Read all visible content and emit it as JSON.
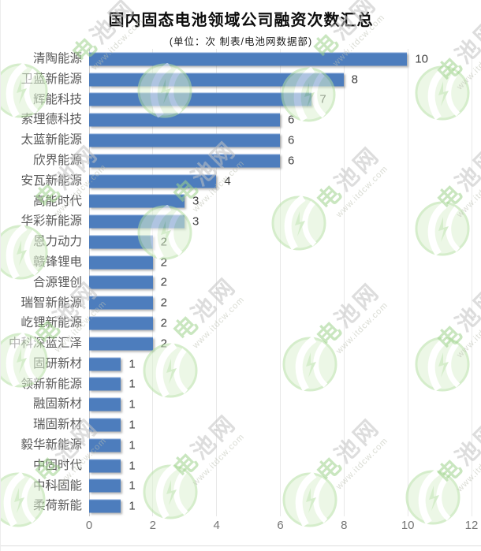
{
  "header": {
    "title": "国内固态电池领域公司融资次数汇总",
    "subtitle": "(单位：次 制表/电池网数据部)"
  },
  "chart_data": {
    "type": "bar",
    "orientation": "horizontal",
    "title": "国内固态电池领域公司融资次数汇总",
    "subtitle": "(单位：次 制表/电池网数据部)",
    "unit": "次",
    "source": "制表/电池网数据部",
    "categories": [
      "清陶能源",
      "卫蓝新能源",
      "辉能科技",
      "索理德科技",
      "太蓝新能源",
      "欣界能源",
      "安瓦新能源",
      "高能时代",
      "华彩新能源",
      "恩力动力",
      "赣锋锂电",
      "合源锂创",
      "瑞智新能源",
      "屹锂新能源",
      "中科深蓝汇泽",
      "固研新材",
      "领新新能源",
      "融固新材",
      "瑞固新材",
      "毅华新能源",
      "中固时代",
      "中科固能",
      "柔荷新能"
    ],
    "values": [
      10,
      8,
      7,
      6,
      6,
      6,
      4,
      3,
      3,
      2,
      2,
      2,
      2,
      2,
      2,
      1,
      1,
      1,
      1,
      1,
      1,
      1,
      1
    ],
    "xlabel": "",
    "ylabel": "",
    "xlim": [
      0,
      12
    ],
    "xticks": [
      0,
      2,
      4,
      6,
      8,
      10,
      12
    ],
    "grid": "vertical",
    "legend": "none",
    "bar_color": "#4d7dbd"
  },
  "watermark": {
    "brand_text": "电池网",
    "url_text": "www.itdcw.com",
    "logo_fill": "#ddf2d2",
    "logo_ring": "#b4dfa2",
    "brand_green": "#9ed38c",
    "brand_gray": "#c3c3c3"
  }
}
